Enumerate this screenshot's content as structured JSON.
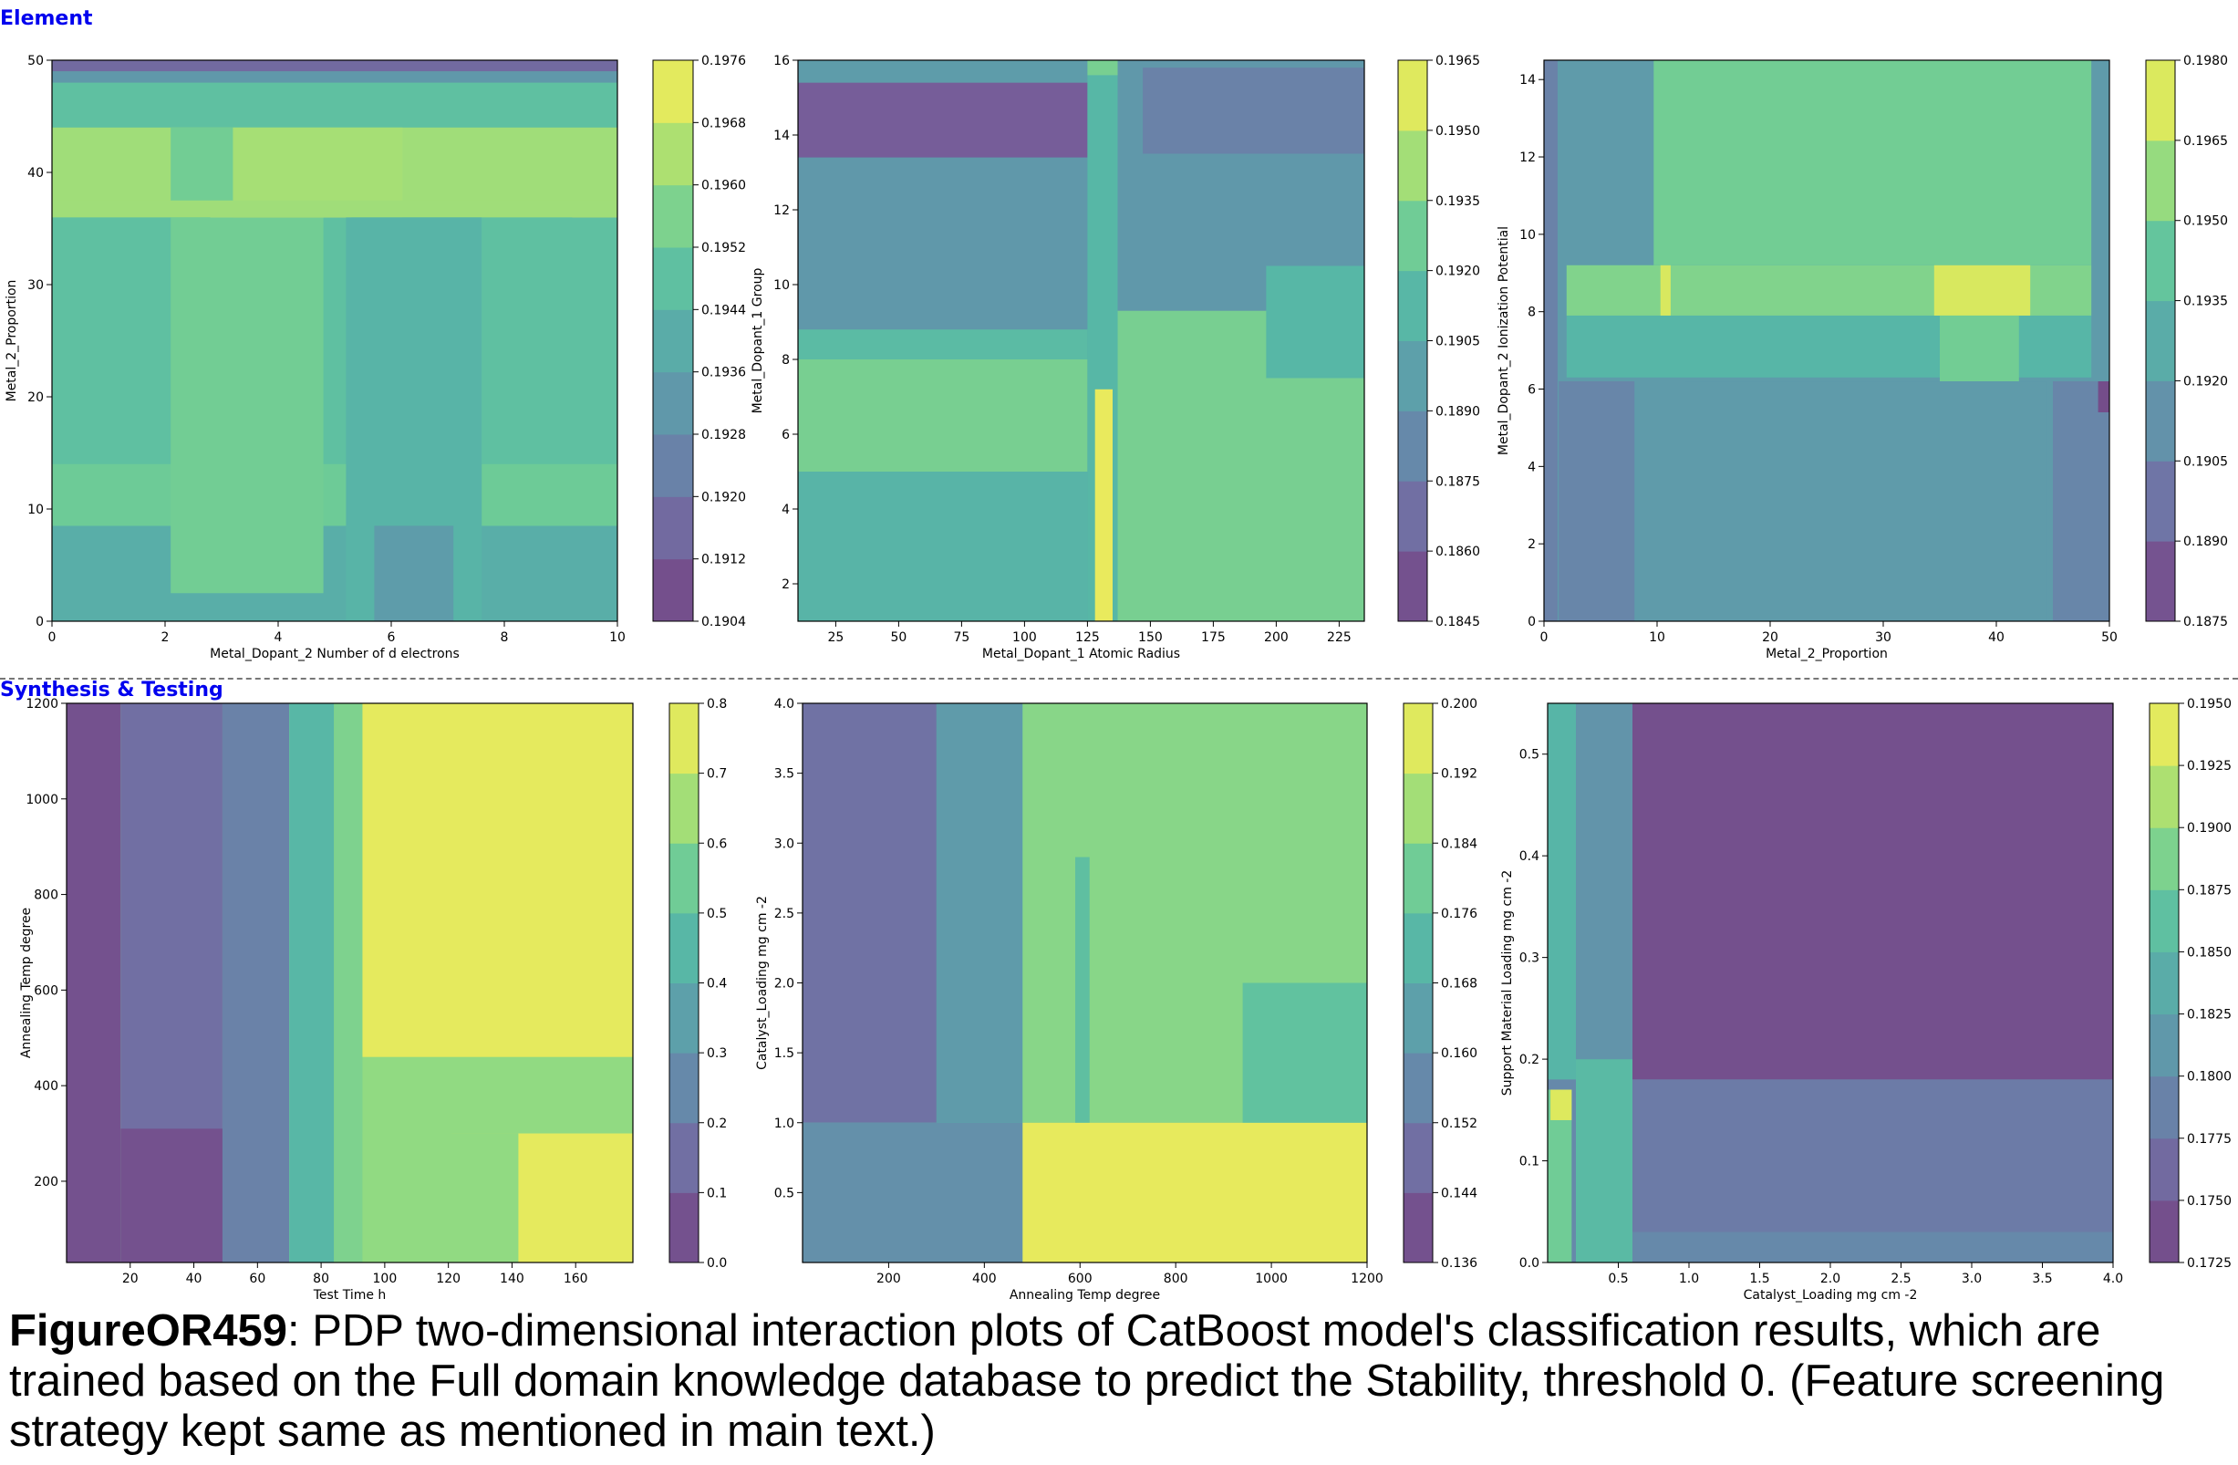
{
  "sections": [
    {
      "title": "Element"
    },
    {
      "title": "Synthesis & Testing"
    }
  ],
  "caption": {
    "figure_id": "FigureOR459",
    "text": ": PDP two-dimensional interaction plots of CatBoost model's classification results, which are trained based on the Full domain knowledge database to predict the Stability, threshold 0. (Feature screening strategy kept same as mentioned in main text.)"
  },
  "colormap": {
    "name": "viridis",
    "alpha": 0.75,
    "stops": [
      "#440154",
      "#482878",
      "#3e4989",
      "#31688e",
      "#26828e",
      "#1f9e89",
      "#35b779",
      "#6ece58",
      "#b5de2b",
      "#fde725"
    ]
  },
  "chart_data": [
    {
      "type": "heatmap",
      "subtype": "filled-contour",
      "xlabel": "Metal_Dopant_2 Number of d electrons",
      "ylabel": "Metal_2_Proportion",
      "xlim": [
        0,
        10
      ],
      "ylim": [
        0,
        50
      ],
      "xticks": [
        "0",
        "2",
        "4",
        "6",
        "8",
        "10"
      ],
      "yticks": [
        "0",
        "10",
        "20",
        "30",
        "40",
        "50"
      ],
      "colorbar_ticks": [
        "0.1904",
        "0.1912",
        "0.1920",
        "0.1928",
        "0.1936",
        "0.1944",
        "0.1952",
        "0.1960",
        "0.1968",
        "0.1976"
      ],
      "colorbar_range": [
        0.1904,
        0.1976
      ],
      "regions": [
        {
          "x": [
            0,
            10
          ],
          "y": [
            0,
            50
          ],
          "value": 0.1948
        },
        {
          "x": [
            0,
            10
          ],
          "y": [
            0,
            8.5
          ],
          "value": 0.1941
        },
        {
          "x": [
            0,
            10
          ],
          "y": [
            8.5,
            14
          ],
          "value": 0.1953
        },
        {
          "x": [
            0,
            10
          ],
          "y": [
            36,
            44
          ],
          "value": 0.1962
        },
        {
          "x": [
            2.1,
            4.8
          ],
          "y": [
            2.5,
            44
          ],
          "value": 0.1954
        },
        {
          "x": [
            3.2,
            6.2
          ],
          "y": [
            36,
            44
          ],
          "value": 0.1963
        },
        {
          "x": [
            2.8,
            5.3
          ],
          "y": [
            36,
            37
          ],
          "value": 0.1974
        },
        {
          "x": [
            9.2,
            10
          ],
          "y": [
            36,
            37
          ],
          "value": 0.1974
        },
        {
          "x": [
            5.2,
            7.6
          ],
          "y": [
            0,
            36
          ],
          "value": 0.1943
        },
        {
          "x": [
            5.7,
            7.1
          ],
          "y": [
            0,
            8.5
          ],
          "value": 0.1934
        },
        {
          "x": [
            0,
            10
          ],
          "y": [
            36,
            37.5
          ],
          "value": 0.1962
        },
        {
          "x": [
            0,
            10
          ],
          "y": [
            49,
            50
          ],
          "value": 0.1916
        },
        {
          "x": [
            0,
            10
          ],
          "y": [
            48,
            49
          ],
          "value": 0.1932
        }
      ]
    },
    {
      "type": "heatmap",
      "subtype": "filled-contour",
      "xlabel": "Metal_Dopant_1 Atomic Radius",
      "ylabel": "Metal_Dopant_1 Group",
      "xlim": [
        10,
        235
      ],
      "ylim": [
        1,
        16
      ],
      "xticks": [
        "25",
        "50",
        "75",
        "100",
        "125",
        "150",
        "175",
        "200",
        "225"
      ],
      "yticks": [
        "2",
        "4",
        "6",
        "8",
        "10",
        "12",
        "14",
        "16"
      ],
      "colorbar_ticks": [
        "0.1845",
        "0.1860",
        "0.1875",
        "0.1890",
        "0.1905",
        "0.1920",
        "0.1935",
        "0.1950",
        "0.1965"
      ],
      "colorbar_range": [
        0.1845,
        0.1965
      ],
      "regions": [
        {
          "x": [
            10,
            235
          ],
          "y": [
            1,
            16
          ],
          "value": 0.1892
        },
        {
          "x": [
            10,
            125
          ],
          "y": [
            1,
            5
          ],
          "value": 0.191
        },
        {
          "x": [
            10,
            125
          ],
          "y": [
            5,
            8
          ],
          "value": 0.193
        },
        {
          "x": [
            10,
            125
          ],
          "y": [
            8,
            8.8
          ],
          "value": 0.1915
        },
        {
          "x": [
            10,
            125
          ],
          "y": [
            13.4,
            15.4
          ],
          "value": 0.1858
        },
        {
          "x": [
            10,
            125
          ],
          "y": [
            15.4,
            16
          ],
          "value": 0.1895
        },
        {
          "x": [
            125,
            137
          ],
          "y": [
            1,
            16
          ],
          "value": 0.1912
        },
        {
          "x": [
            128,
            135
          ],
          "y": [
            1,
            7.2
          ],
          "value": 0.196
        },
        {
          "x": [
            137,
            235
          ],
          "y": [
            1,
            9.3
          ],
          "value": 0.193
        },
        {
          "x": [
            196,
            235
          ],
          "y": [
            7.5,
            10.5
          ],
          "value": 0.1912
        },
        {
          "x": [
            147,
            235
          ],
          "y": [
            13.5,
            15.8
          ],
          "value": 0.1878
        },
        {
          "x": [
            125,
            137
          ],
          "y": [
            15.6,
            16
          ],
          "value": 0.193
        }
      ]
    },
    {
      "type": "heatmap",
      "subtype": "filled-contour",
      "xlabel": "Metal_2_Proportion",
      "ylabel": "Metal_Dopant_2 Ionization Potential",
      "xlim": [
        0,
        50
      ],
      "ylim": [
        0,
        14.5
      ],
      "xticks": [
        "0",
        "10",
        "20",
        "30",
        "40",
        "50"
      ],
      "yticks": [
        "0",
        "2",
        "4",
        "6",
        "8",
        "10",
        "12",
        "14"
      ],
      "colorbar_ticks": [
        "0.1875",
        "0.1890",
        "0.1905",
        "0.1920",
        "0.1935",
        "0.1950",
        "0.1965",
        "0.1980"
      ],
      "colorbar_range": [
        0.1875,
        0.198
      ],
      "regions": [
        {
          "x": [
            0,
            50
          ],
          "y": [
            0,
            14.5
          ],
          "value": 0.1918
        },
        {
          "x": [
            9.7,
            48.4
          ],
          "y": [
            9.2,
            14.5
          ],
          "value": 0.1948
        },
        {
          "x": [
            2,
            48.4
          ],
          "y": [
            6.3,
            9.2
          ],
          "value": 0.1933
        },
        {
          "x": [
            2,
            48.4
          ],
          "y": [
            7.9,
            9.2
          ],
          "value": 0.1952
        },
        {
          "x": [
            34.5,
            43
          ],
          "y": [
            7.9,
            9.2
          ],
          "value": 0.1972
        },
        {
          "x": [
            10.3,
            11.2
          ],
          "y": [
            7.9,
            9.2
          ],
          "value": 0.1972
        },
        {
          "x": [
            35,
            42
          ],
          "y": [
            6.2,
            7.9
          ],
          "value": 0.1948
        },
        {
          "x": [
            1.3,
            8
          ],
          "y": [
            0,
            6.2
          ],
          "value": 0.1906
        },
        {
          "x": [
            12.5,
            44.5
          ],
          "y": [
            0,
            6.2
          ],
          "value": 0.1918
        },
        {
          "x": [
            45,
            50
          ],
          "y": [
            0,
            6.2
          ],
          "value": 0.1906
        },
        {
          "x": [
            49,
            50
          ],
          "y": [
            5.4,
            6.2
          ],
          "value": 0.188
        },
        {
          "x": [
            0,
            1.2
          ],
          "y": [
            0,
            14.5
          ],
          "value": 0.1904
        }
      ]
    },
    {
      "type": "heatmap",
      "subtype": "filled-contour",
      "xlabel": "Test Time h",
      "ylabel": "Annealing Temp degree",
      "xlim": [
        0,
        178
      ],
      "ylim": [
        30,
        1200
      ],
      "xticks": [
        "20",
        "40",
        "60",
        "80",
        "100",
        "120",
        "140",
        "160"
      ],
      "yticks": [
        "200",
        "400",
        "600",
        "800",
        "1000",
        "1200"
      ],
      "colorbar_ticks": [
        "0.0",
        "0.1",
        "0.2",
        "0.3",
        "0.4",
        "0.5",
        "0.6",
        "0.7",
        "0.8"
      ],
      "colorbar_range": [
        0.0,
        0.8
      ],
      "regions": [
        {
          "x": [
            0,
            178
          ],
          "y": [
            30,
            1200
          ],
          "value": 0.62
        },
        {
          "x": [
            0,
            17
          ],
          "y": [
            30,
            1200
          ],
          "value": 0.05
        },
        {
          "x": [
            17,
            49
          ],
          "y": [
            30,
            1200
          ],
          "value": 0.15
        },
        {
          "x": [
            17,
            49
          ],
          "y": [
            30,
            310
          ],
          "value": 0.05
        },
        {
          "x": [
            49,
            70
          ],
          "y": [
            30,
            1200
          ],
          "value": 0.22
        },
        {
          "x": [
            70,
            93
          ],
          "y": [
            30,
            1200
          ],
          "value": 0.58
        },
        {
          "x": [
            70,
            84
          ],
          "y": [
            30,
            1200
          ],
          "value": 0.45
        },
        {
          "x": [
            93,
            178
          ],
          "y": [
            460,
            1200
          ],
          "value": 0.76
        },
        {
          "x": [
            121,
            178
          ],
          "y": [
            30,
            300
          ],
          "value": 0.76
        },
        {
          "x": [
            93,
            142
          ],
          "y": [
            30,
            300
          ],
          "value": 0.62
        }
      ]
    },
    {
      "type": "heatmap",
      "subtype": "filled-contour",
      "xlabel": "Annealing Temp degree",
      "ylabel": "Catalyst_Loading mg cm -2",
      "xlim": [
        20,
        1200
      ],
      "ylim": [
        0,
        4.0
      ],
      "xticks": [
        "200",
        "400",
        "600",
        "800",
        "1000",
        "1200"
      ],
      "yticks": [
        "0.5",
        "1.0",
        "1.5",
        "2.0",
        "2.5",
        "3.0",
        "3.5",
        "4.0"
      ],
      "colorbar_ticks": [
        "0.136",
        "0.144",
        "0.152",
        "0.160",
        "0.168",
        "0.176",
        "0.184",
        "0.192",
        "0.200"
      ],
      "colorbar_range": [
        0.136,
        0.2
      ],
      "regions": [
        {
          "x": [
            20,
            1200
          ],
          "y": [
            0,
            4.0
          ],
          "value": 0.172
        },
        {
          "x": [
            20,
            300
          ],
          "y": [
            1.0,
            4.0
          ],
          "value": 0.149
        },
        {
          "x": [
            20,
            480
          ],
          "y": [
            0,
            1.0
          ],
          "value": 0.158
        },
        {
          "x": [
            300,
            480
          ],
          "y": [
            1.0,
            4.0
          ],
          "value": 0.162
        },
        {
          "x": [
            480,
            1200
          ],
          "y": [
            1.0,
            4.0
          ],
          "value": 0.184
        },
        {
          "x": [
            480,
            1200
          ],
          "y": [
            0,
            1.0
          ],
          "value": 0.197
        },
        {
          "x": [
            940,
            1200
          ],
          "y": [
            1.0,
            2.0
          ],
          "value": 0.176
        },
        {
          "x": [
            590,
            620
          ],
          "y": [
            1.0,
            2.9
          ],
          "value": 0.175
        }
      ]
    },
    {
      "type": "heatmap",
      "subtype": "filled-contour",
      "xlabel": "Catalyst_Loading mg cm -2",
      "ylabel": "Support Material Loading mg cm -2",
      "xlim": [
        0,
        4.0
      ],
      "ylim": [
        0,
        0.55
      ],
      "xticks": [
        "0.5",
        "1.0",
        "1.5",
        "2.0",
        "2.5",
        "3.0",
        "3.5",
        "4.0"
      ],
      "yticks": [
        "0.0",
        "0.1",
        "0.2",
        "0.3",
        "0.4",
        "0.5"
      ],
      "colorbar_ticks": [
        "0.1725",
        "0.1750",
        "0.1775",
        "0.1800",
        "0.1825",
        "0.1850",
        "0.1875",
        "0.1900",
        "0.1925",
        "0.1950"
      ],
      "colorbar_range": [
        0.1725,
        0.195
      ],
      "regions": [
        {
          "x": [
            0,
            4.0
          ],
          "y": [
            0,
            0.55
          ],
          "value": 0.1795
        },
        {
          "x": [
            0.6,
            4.0
          ],
          "y": [
            0.18,
            0.55
          ],
          "value": 0.1738
        },
        {
          "x": [
            0.6,
            4.0
          ],
          "y": [
            0.03,
            0.18
          ],
          "value": 0.178
        },
        {
          "x": [
            0,
            0.2
          ],
          "y": [
            0.18,
            0.55
          ],
          "value": 0.1848
        },
        {
          "x": [
            0.2,
            0.6
          ],
          "y": [
            0,
            0.2
          ],
          "value": 0.1855
        },
        {
          "x": [
            0,
            0.17
          ],
          "y": [
            0,
            0.17
          ],
          "value": 0.188
        },
        {
          "x": [
            0.02,
            0.17
          ],
          "y": [
            0.14,
            0.17
          ],
          "value": 0.1935
        },
        {
          "x": [
            0.2,
            0.6
          ],
          "y": [
            0.2,
            0.55
          ],
          "value": 0.1808
        }
      ]
    }
  ]
}
